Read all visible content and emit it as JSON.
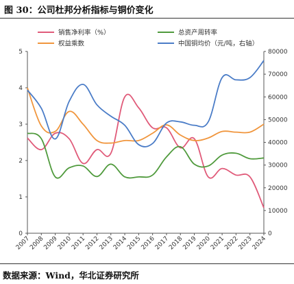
{
  "figure_title": "图 30：公司杜邦分析指标与铜价变化",
  "source_note": "数据来源：Wind，华北证券研究所",
  "colors": {
    "net_margin": "#e05a79",
    "asset_turnover": "#4f9a3c",
    "equity_multiplier": "#f0953c",
    "copper_price": "#4a7cc7"
  },
  "chart_data": {
    "type": "line",
    "x": [
      "2007",
      "2008",
      "2009",
      "2010",
      "2011",
      "2012",
      "2013",
      "2014",
      "2015",
      "2016",
      "2017",
      "2018",
      "2019",
      "2020",
      "2021",
      "2022",
      "2023",
      "2024"
    ],
    "left_axis": {
      "ylim": [
        0,
        5
      ],
      "ticks": [
        "0",
        "1",
        "2",
        "3",
        "4",
        "5"
      ]
    },
    "right_axis": {
      "ylim": [
        0,
        80000
      ],
      "ticks": [
        "0",
        "10000",
        "20000",
        "30000",
        "40000",
        "50000",
        "60000",
        "70000",
        "80000"
      ]
    },
    "grid": false,
    "legend_placement": "top",
    "series": [
      {
        "key": "net_margin",
        "name": "销售净利率（%）",
        "axis": "left",
        "values": [
          2.62,
          2.3,
          2.75,
          2.6,
          1.92,
          2.3,
          2.2,
          3.75,
          3.45,
          2.9,
          2.9,
          2.35,
          2.6,
          1.55,
          1.78,
          1.6,
          1.55,
          0.7
        ]
      },
      {
        "key": "asset_turnover",
        "name": "总资产周转率",
        "axis": "left",
        "values": [
          2.75,
          2.6,
          1.55,
          1.8,
          1.85,
          1.56,
          1.9,
          1.55,
          1.55,
          1.6,
          2.1,
          2.38,
          1.9,
          1.85,
          2.15,
          2.2,
          2.05,
          2.07
        ]
      },
      {
        "key": "equity_multiplier",
        "name": "权益乘数",
        "axis": "left",
        "values": [
          4.0,
          2.95,
          2.8,
          3.35,
          3.0,
          2.55,
          2.48,
          2.55,
          2.55,
          2.75,
          2.98,
          2.7,
          2.55,
          2.62,
          2.8,
          2.78,
          2.78,
          3.0
        ]
      },
      {
        "key": "copper_price",
        "name": "中国铜均价（元/吨，右轴）",
        "axis": "right",
        "values": [
          63000,
          55000,
          41500,
          58000,
          65500,
          56500,
          51500,
          47500,
          39000,
          39500,
          48500,
          49000,
          47500,
          49000,
          68500,
          67500,
          68500,
          76000
        ]
      }
    ]
  }
}
